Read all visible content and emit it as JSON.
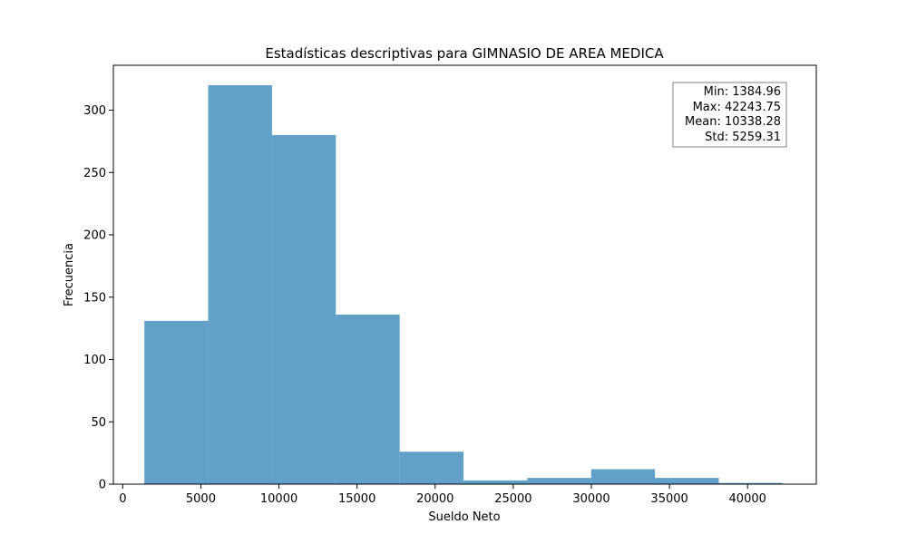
{
  "chart_data": {
    "type": "bar",
    "title": "Estadísticas descriptivas para GIMNASIO DE AREA MEDICA",
    "xlabel": "Sueldo Neto",
    "ylabel": "Frecuencia",
    "bin_edges": [
      1384.96,
      5470.84,
      9556.72,
      13642.6,
      17728.48,
      21814.36,
      25900.24,
      29986.12,
      34072.0,
      38157.87,
      42243.75
    ],
    "values": [
      131,
      320,
      280,
      136,
      26,
      3,
      5,
      12,
      5,
      1
    ],
    "xlim": [
      -600,
      44400
    ],
    "ylim": [
      0,
      336
    ],
    "xticks": [
      0,
      5000,
      10000,
      15000,
      20000,
      25000,
      30000,
      35000,
      40000
    ],
    "yticks": [
      0,
      50,
      100,
      150,
      200,
      250,
      300
    ],
    "bar_color": "#1f77b4",
    "bar_alpha": 0.7,
    "grid": false,
    "stats_box": {
      "placement": "top-right",
      "lines": [
        "Min: 1384.96",
        "Max: 42243.75",
        "Mean: 10338.28",
        "Std: 5259.31"
      ]
    }
  }
}
